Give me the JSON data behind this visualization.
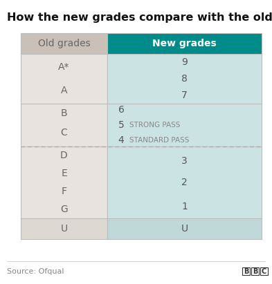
{
  "title": "How the new grades compare with the old ones",
  "source": "Source: Ofqual",
  "bbc_logo": "BBC",
  "col_header_old": "Old grades",
  "col_header_new": "New grades",
  "header_old_bg": "#c9c0b8",
  "header_new_bg": "#008b8b",
  "header_new_text": "#ffffff",
  "header_old_text": "#666666",
  "col_old_bg": "#e8e3de",
  "col_new_bg": "#cce3e3",
  "u_old_bg": "#ddd8d2",
  "u_new_bg": "#bfd9d9",
  "row_sep_color": "#bbbbbb",
  "dashed_line_color": "#aaaaaa",
  "bg_color": "#ffffff",
  "title_fontsize": 11.5,
  "header_fontsize": 10,
  "cell_fontsize": 10,
  "label_fontsize": 7.5,
  "source_fontsize": 8
}
